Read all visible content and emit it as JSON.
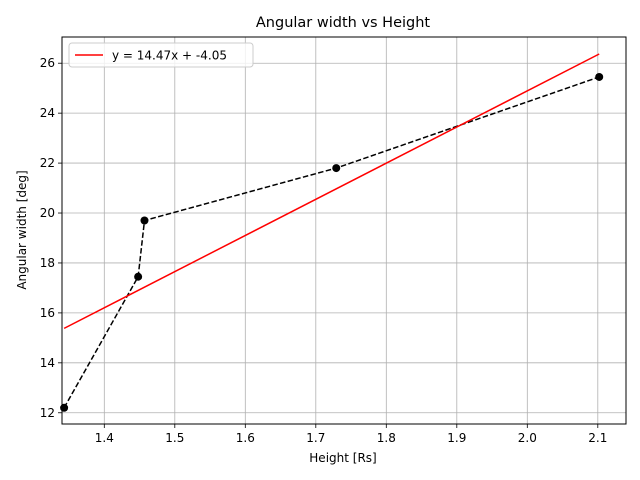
{
  "chart_data": {
    "type": "line",
    "title": "Angular width vs Height",
    "xlabel": "Height [Rs]",
    "ylabel": "Angular width [deg]",
    "xlim": [
      1.34,
      2.14
    ],
    "ylim": [
      11.55,
      27.05
    ],
    "xticks": [
      1.4,
      1.5,
      1.6,
      1.7,
      1.8,
      1.9,
      2.0,
      2.1
    ],
    "xtick_labels": [
      "1.4",
      "1.5",
      "1.6",
      "1.7",
      "1.8",
      "1.9",
      "2.0",
      "2.1"
    ],
    "yticks": [
      12,
      14,
      16,
      18,
      20,
      22,
      24,
      26
    ],
    "ytick_labels": [
      "12",
      "14",
      "16",
      "18",
      "20",
      "22",
      "24",
      "26"
    ],
    "grid": true,
    "legend_position": "top-left",
    "series": [
      {
        "name": "",
        "style": "dashed-with-markers",
        "color": "#000000",
        "x": [
          1.343,
          1.448,
          1.457,
          1.729,
          2.102
        ],
        "y": [
          12.2,
          17.45,
          19.7,
          21.8,
          25.45
        ]
      },
      {
        "name": "y = 14.47x + -4.05",
        "style": "solid",
        "color": "#ff0000",
        "x": [
          1.343,
          2.102
        ],
        "y": [
          15.38,
          26.37
        ]
      }
    ]
  }
}
